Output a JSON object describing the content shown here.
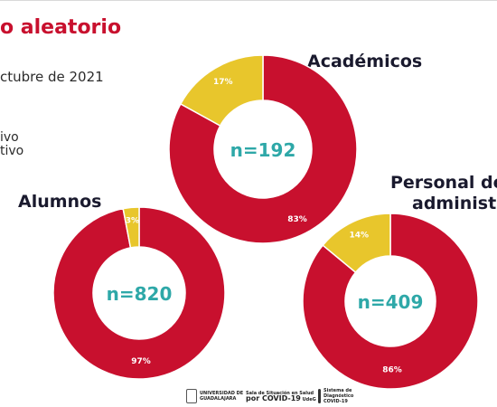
{
  "slide": {
    "title": "o aleatorio",
    "subtitle": "ctubre de 2021",
    "legend_fragments": [
      "ivo",
      "tivo"
    ]
  },
  "colors": {
    "negative": "#c8102e",
    "positive": "#e8c62c",
    "n_label": "#2ea8a8",
    "heading": "#1a1a2e"
  },
  "chart_data": [
    {
      "type": "pie",
      "title": "Académicos",
      "n_label": "n=192",
      "slices": [
        {
          "label": "83%",
          "value": 83,
          "color": "#c8102e"
        },
        {
          "label": "17%",
          "value": 17,
          "color": "#e8c62c"
        }
      ]
    },
    {
      "type": "pie",
      "title": "Alumnos",
      "n_label": "n=820",
      "slices": [
        {
          "label": "97%",
          "value": 97,
          "color": "#c8102e"
        },
        {
          "label": "3%",
          "value": 3,
          "color": "#e8c62c"
        }
      ]
    },
    {
      "type": "pie",
      "title": "Personal de administr",
      "title_lines": [
        "Personal de",
        "administr"
      ],
      "n_label": "n=409",
      "slices": [
        {
          "label": "86%",
          "value": 86,
          "color": "#c8102e"
        },
        {
          "label": "14%",
          "value": 14,
          "color": "#e8c62c"
        }
      ]
    }
  ],
  "footer": {
    "udg_line1": "UNIVERSIDAD DE",
    "udg_line2": "GUADALAJARA",
    "sala_line1": "Sala de Situación en Salud",
    "sala_line2": "por COVID-19",
    "sala_line2_suffix": "UdeG",
    "sistema_line1": "Sistema de",
    "sistema_line2": "Diagnóstico",
    "sistema_line3": "COVID-19"
  }
}
